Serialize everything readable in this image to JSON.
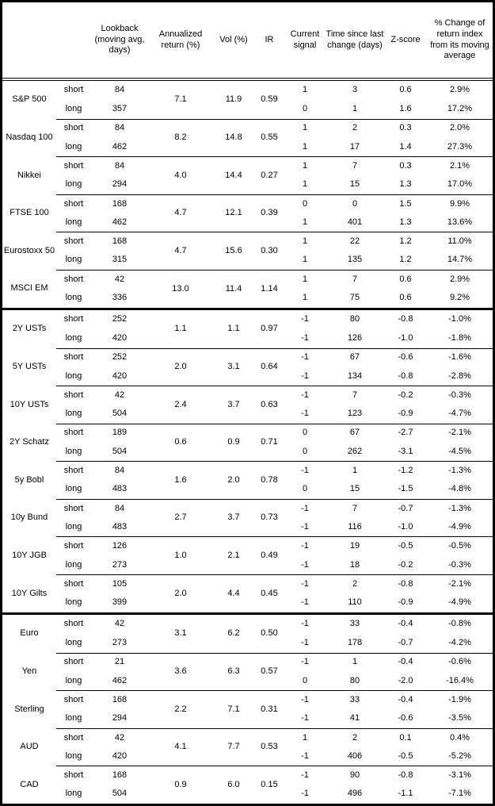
{
  "table": {
    "headers": {
      "lookback": "Lookback (moving avg, days)",
      "annualized_return": "Annualized return (%)",
      "vol": "Vol (%)",
      "ir": "IR",
      "current_signal": "Current signal",
      "time_since": "Time since last change (days)",
      "z_score": "Z-score",
      "pct_change": "% Change of return index from its moving average"
    },
    "groups": [
      {
        "name": "S&P 500",
        "section_start": false,
        "annualized_return": "7.1",
        "vol": "11.9",
        "ir": "0.59",
        "legs": [
          {
            "label": "short",
            "lookback": "84",
            "signal": "1",
            "time_since": "3",
            "z_score": "0.6",
            "pct_change": "2.9%"
          },
          {
            "label": "long",
            "lookback": "357",
            "signal": "0",
            "time_since": "1",
            "z_score": "1.6",
            "pct_change": "17.2%"
          }
        ]
      },
      {
        "name": "Nasdaq 100",
        "section_start": false,
        "annualized_return": "8.2",
        "vol": "14.8",
        "ir": "0.55",
        "legs": [
          {
            "label": "short",
            "lookback": "84",
            "signal": "1",
            "time_since": "2",
            "z_score": "0.3",
            "pct_change": "2.0%"
          },
          {
            "label": "long",
            "lookback": "462",
            "signal": "1",
            "time_since": "17",
            "z_score": "1.4",
            "pct_change": "27.3%"
          }
        ]
      },
      {
        "name": "Nikkei",
        "section_start": false,
        "annualized_return": "4.0",
        "vol": "14.4",
        "ir": "0.27",
        "legs": [
          {
            "label": "short",
            "lookback": "84",
            "signal": "1",
            "time_since": "7",
            "z_score": "0.3",
            "pct_change": "2.1%"
          },
          {
            "label": "long",
            "lookback": "294",
            "signal": "1",
            "time_since": "15",
            "z_score": "1.3",
            "pct_change": "17.0%"
          }
        ]
      },
      {
        "name": "FTSE 100",
        "section_start": false,
        "annualized_return": "4.7",
        "vol": "12.1",
        "ir": "0.39",
        "legs": [
          {
            "label": "short",
            "lookback": "168",
            "signal": "0",
            "time_since": "0",
            "z_score": "1.5",
            "pct_change": "9.9%"
          },
          {
            "label": "long",
            "lookback": "462",
            "signal": "1",
            "time_since": "401",
            "z_score": "1.3",
            "pct_change": "13.6%"
          }
        ]
      },
      {
        "name": "Eurostoxx 50",
        "section_start": false,
        "annualized_return": "4.7",
        "vol": "15.6",
        "ir": "0.30",
        "legs": [
          {
            "label": "short",
            "lookback": "168",
            "signal": "1",
            "time_since": "22",
            "z_score": "1.2",
            "pct_change": "11.0%"
          },
          {
            "label": "long",
            "lookback": "315",
            "signal": "1",
            "time_since": "135",
            "z_score": "1.2",
            "pct_change": "14.7%"
          }
        ]
      },
      {
        "name": "MSCI EM",
        "section_start": false,
        "annualized_return": "13.0",
        "vol": "11.4",
        "ir": "1.14",
        "legs": [
          {
            "label": "short",
            "lookback": "42",
            "signal": "1",
            "time_since": "7",
            "z_score": "0.6",
            "pct_change": "2.9%"
          },
          {
            "label": "long",
            "lookback": "336",
            "signal": "1",
            "time_since": "75",
            "z_score": "0.6",
            "pct_change": "9.2%"
          }
        ]
      },
      {
        "name": "2Y USTs",
        "section_start": true,
        "annualized_return": "1.1",
        "vol": "1.1",
        "ir": "0.97",
        "legs": [
          {
            "label": "short",
            "lookback": "252",
            "signal": "-1",
            "time_since": "80",
            "z_score": "-0.8",
            "pct_change": "-1.0%"
          },
          {
            "label": "long",
            "lookback": "420",
            "signal": "-1",
            "time_since": "126",
            "z_score": "-1.0",
            "pct_change": "-1.8%"
          }
        ]
      },
      {
        "name": "5Y USTs",
        "section_start": false,
        "annualized_return": "2.0",
        "vol": "3.1",
        "ir": "0.64",
        "legs": [
          {
            "label": "short",
            "lookback": "252",
            "signal": "-1",
            "time_since": "67",
            "z_score": "-0.6",
            "pct_change": "-1.6%"
          },
          {
            "label": "long",
            "lookback": "420",
            "signal": "-1",
            "time_since": "134",
            "z_score": "-0.8",
            "pct_change": "-2.8%"
          }
        ]
      },
      {
        "name": "10Y USTs",
        "section_start": false,
        "annualized_return": "2.4",
        "vol": "3.7",
        "ir": "0.63",
        "legs": [
          {
            "label": "short",
            "lookback": "42",
            "signal": "-1",
            "time_since": "7",
            "z_score": "-0.2",
            "pct_change": "-0.3%"
          },
          {
            "label": "long",
            "lookback": "504",
            "signal": "-1",
            "time_since": "123",
            "z_score": "-0.9",
            "pct_change": "-4.7%"
          }
        ]
      },
      {
        "name": "2Y Schatz",
        "section_start": false,
        "annualized_return": "0.6",
        "vol": "0.9",
        "ir": "0.71",
        "legs": [
          {
            "label": "short",
            "lookback": "189",
            "signal": "0",
            "time_since": "67",
            "z_score": "-2.7",
            "pct_change": "-2.1%"
          },
          {
            "label": "long",
            "lookback": "504",
            "signal": "0",
            "time_since": "262",
            "z_score": "-3.1",
            "pct_change": "-4.5%"
          }
        ]
      },
      {
        "name": "5y Bobl",
        "section_start": false,
        "annualized_return": "1.6",
        "vol": "2.0",
        "ir": "0.78",
        "legs": [
          {
            "label": "short",
            "lookback": "84",
            "signal": "-1",
            "time_since": "1",
            "z_score": "-1.2",
            "pct_change": "-1.3%"
          },
          {
            "label": "long",
            "lookback": "483",
            "signal": "0",
            "time_since": "15",
            "z_score": "-1.5",
            "pct_change": "-4.8%"
          }
        ]
      },
      {
        "name": "10y Bund",
        "section_start": false,
        "annualized_return": "2.7",
        "vol": "3.7",
        "ir": "0.73",
        "legs": [
          {
            "label": "short",
            "lookback": "84",
            "signal": "-1",
            "time_since": "7",
            "z_score": "-0.7",
            "pct_change": "-1.3%"
          },
          {
            "label": "long",
            "lookback": "483",
            "signal": "-1",
            "time_since": "116",
            "z_score": "-1.0",
            "pct_change": "-4.9%"
          }
        ]
      },
      {
        "name": "10Y JGB",
        "section_start": false,
        "annualized_return": "1.0",
        "vol": "2.1",
        "ir": "0.49",
        "legs": [
          {
            "label": "short",
            "lookback": "126",
            "signal": "-1",
            "time_since": "19",
            "z_score": "-0.5",
            "pct_change": "-0.5%"
          },
          {
            "label": "long",
            "lookback": "273",
            "signal": "-1",
            "time_since": "18",
            "z_score": "-0.2",
            "pct_change": "-0.3%"
          }
        ]
      },
      {
        "name": "10Y Gilts",
        "section_start": false,
        "annualized_return": "2.0",
        "vol": "4.4",
        "ir": "0.45",
        "legs": [
          {
            "label": "short",
            "lookback": "105",
            "signal": "-1",
            "time_since": "2",
            "z_score": "-0.8",
            "pct_change": "-2.1%"
          },
          {
            "label": "long",
            "lookback": "399",
            "signal": "-1",
            "time_since": "110",
            "z_score": "-0.9",
            "pct_change": "-4.9%"
          }
        ]
      },
      {
        "name": "Euro",
        "section_start": true,
        "annualized_return": "3.1",
        "vol": "6.2",
        "ir": "0.50",
        "legs": [
          {
            "label": "short",
            "lookback": "42",
            "signal": "-1",
            "time_since": "33",
            "z_score": "-0.4",
            "pct_change": "-0.8%"
          },
          {
            "label": "long",
            "lookback": "273",
            "signal": "-1",
            "time_since": "178",
            "z_score": "-0.7",
            "pct_change": "-4.2%"
          }
        ]
      },
      {
        "name": "Yen",
        "section_start": false,
        "annualized_return": "3.6",
        "vol": "6.3",
        "ir": "0.57",
        "legs": [
          {
            "label": "short",
            "lookback": "21",
            "signal": "-1",
            "time_since": "1",
            "z_score": "-0.4",
            "pct_change": "-0.6%"
          },
          {
            "label": "long",
            "lookback": "462",
            "signal": "0",
            "time_since": "80",
            "z_score": "-2.0",
            "pct_change": "-16.4%"
          }
        ]
      },
      {
        "name": "Sterling",
        "section_start": false,
        "annualized_return": "2.2",
        "vol": "7.1",
        "ir": "0.31",
        "legs": [
          {
            "label": "short",
            "lookback": "168",
            "signal": "-1",
            "time_since": "33",
            "z_score": "-0.4",
            "pct_change": "-1.9%"
          },
          {
            "label": "long",
            "lookback": "294",
            "signal": "-1",
            "time_since": "41",
            "z_score": "-0.6",
            "pct_change": "-3.5%"
          }
        ]
      },
      {
        "name": "AUD",
        "section_start": false,
        "annualized_return": "4.1",
        "vol": "7.7",
        "ir": "0.53",
        "legs": [
          {
            "label": "short",
            "lookback": "42",
            "signal": "1",
            "time_since": "2",
            "z_score": "0.1",
            "pct_change": "0.4%"
          },
          {
            "label": "long",
            "lookback": "420",
            "signal": "-1",
            "time_since": "406",
            "z_score": "-0.5",
            "pct_change": "-5.2%"
          }
        ]
      },
      {
        "name": "CAD",
        "section_start": false,
        "annualized_return": "0.9",
        "vol": "6.0",
        "ir": "0.15",
        "legs": [
          {
            "label": "short",
            "lookback": "168",
            "signal": "-1",
            "time_since": "90",
            "z_score": "-0.8",
            "pct_change": "-3.1%"
          },
          {
            "label": "long",
            "lookback": "504",
            "signal": "-1",
            "time_since": "496",
            "z_score": "-1.1",
            "pct_change": "-7.1%"
          }
        ]
      }
    ]
  },
  "chart_data": {
    "type": "table",
    "columns": [
      "Asset",
      "Leg",
      "Lookback (moving avg, days)",
      "Annualized return (%)",
      "Vol (%)",
      "IR",
      "Current signal",
      "Time since last change (days)",
      "Z-score",
      "% Change of return index from its moving average"
    ],
    "rows": [
      [
        "S&P 500",
        "short",
        84,
        7.1,
        11.9,
        0.59,
        1,
        3,
        0.6,
        "2.9%"
      ],
      [
        "S&P 500",
        "long",
        357,
        7.1,
        11.9,
        0.59,
        0,
        1,
        1.6,
        "17.2%"
      ],
      [
        "Nasdaq 100",
        "short",
        84,
        8.2,
        14.8,
        0.55,
        1,
        2,
        0.3,
        "2.0%"
      ],
      [
        "Nasdaq 100",
        "long",
        462,
        8.2,
        14.8,
        0.55,
        1,
        17,
        1.4,
        "27.3%"
      ],
      [
        "Nikkei",
        "short",
        84,
        4.0,
        14.4,
        0.27,
        1,
        7,
        0.3,
        "2.1%"
      ],
      [
        "Nikkei",
        "long",
        294,
        4.0,
        14.4,
        0.27,
        1,
        15,
        1.3,
        "17.0%"
      ],
      [
        "FTSE 100",
        "short",
        168,
        4.7,
        12.1,
        0.39,
        0,
        0,
        1.5,
        "9.9%"
      ],
      [
        "FTSE 100",
        "long",
        462,
        4.7,
        12.1,
        0.39,
        1,
        401,
        1.3,
        "13.6%"
      ],
      [
        "Eurostoxx 50",
        "short",
        168,
        4.7,
        15.6,
        0.3,
        1,
        22,
        1.2,
        "11.0%"
      ],
      [
        "Eurostoxx 50",
        "long",
        315,
        4.7,
        15.6,
        0.3,
        1,
        135,
        1.2,
        "14.7%"
      ],
      [
        "MSCI EM",
        "short",
        42,
        13.0,
        11.4,
        1.14,
        1,
        7,
        0.6,
        "2.9%"
      ],
      [
        "MSCI EM",
        "long",
        336,
        13.0,
        11.4,
        1.14,
        1,
        75,
        0.6,
        "9.2%"
      ],
      [
        "2Y USTs",
        "short",
        252,
        1.1,
        1.1,
        0.97,
        -1,
        80,
        -0.8,
        "-1.0%"
      ],
      [
        "2Y USTs",
        "long",
        420,
        1.1,
        1.1,
        0.97,
        -1,
        126,
        -1.0,
        "-1.8%"
      ],
      [
        "5Y USTs",
        "short",
        252,
        2.0,
        3.1,
        0.64,
        -1,
        67,
        -0.6,
        "-1.6%"
      ],
      [
        "5Y USTs",
        "long",
        420,
        2.0,
        3.1,
        0.64,
        -1,
        134,
        -0.8,
        "-2.8%"
      ],
      [
        "10Y USTs",
        "short",
        42,
        2.4,
        3.7,
        0.63,
        -1,
        7,
        -0.2,
        "-0.3%"
      ],
      [
        "10Y USTs",
        "long",
        504,
        2.4,
        3.7,
        0.63,
        -1,
        123,
        -0.9,
        "-4.7%"
      ],
      [
        "2Y Schatz",
        "short",
        189,
        0.6,
        0.9,
        0.71,
        0,
        67,
        -2.7,
        "-2.1%"
      ],
      [
        "2Y Schatz",
        "long",
        504,
        0.6,
        0.9,
        0.71,
        0,
        262,
        -3.1,
        "-4.5%"
      ],
      [
        "5y Bobl",
        "short",
        84,
        1.6,
        2.0,
        0.78,
        -1,
        1,
        -1.2,
        "-1.3%"
      ],
      [
        "5y Bobl",
        "long",
        483,
        1.6,
        2.0,
        0.78,
        0,
        15,
        -1.5,
        "-4.8%"
      ],
      [
        "10y Bund",
        "short",
        84,
        2.7,
        3.7,
        0.73,
        -1,
        7,
        -0.7,
        "-1.3%"
      ],
      [
        "10y Bund",
        "long",
        483,
        2.7,
        3.7,
        0.73,
        -1,
        116,
        -1.0,
        "-4.9%"
      ],
      [
        "10Y JGB",
        "short",
        126,
        1.0,
        2.1,
        0.49,
        -1,
        19,
        -0.5,
        "-0.5%"
      ],
      [
        "10Y JGB",
        "long",
        273,
        1.0,
        2.1,
        0.49,
        -1,
        18,
        -0.2,
        "-0.3%"
      ],
      [
        "10Y Gilts",
        "short",
        105,
        2.0,
        4.4,
        0.45,
        -1,
        2,
        -0.8,
        "-2.1%"
      ],
      [
        "10Y Gilts",
        "long",
        399,
        2.0,
        4.4,
        0.45,
        -1,
        110,
        -0.9,
        "-4.9%"
      ],
      [
        "Euro",
        "short",
        42,
        3.1,
        6.2,
        0.5,
        -1,
        33,
        -0.4,
        "-0.8%"
      ],
      [
        "Euro",
        "long",
        273,
        3.1,
        6.2,
        0.5,
        -1,
        178,
        -0.7,
        "-4.2%"
      ],
      [
        "Yen",
        "short",
        21,
        3.6,
        6.3,
        0.57,
        -1,
        1,
        -0.4,
        "-0.6%"
      ],
      [
        "Yen",
        "long",
        462,
        3.6,
        6.3,
        0.57,
        0,
        80,
        -2.0,
        "-16.4%"
      ],
      [
        "Sterling",
        "short",
        168,
        2.2,
        7.1,
        0.31,
        -1,
        33,
        -0.4,
        "-1.9%"
      ],
      [
        "Sterling",
        "long",
        294,
        2.2,
        7.1,
        0.31,
        -1,
        41,
        -0.6,
        "-3.5%"
      ],
      [
        "AUD",
        "short",
        42,
        4.1,
        7.7,
        0.53,
        1,
        2,
        0.1,
        "0.4%"
      ],
      [
        "AUD",
        "long",
        420,
        4.1,
        7.7,
        0.53,
        -1,
        406,
        -0.5,
        "-5.2%"
      ],
      [
        "CAD",
        "short",
        168,
        0.9,
        6.0,
        0.15,
        -1,
        90,
        -0.8,
        "-3.1%"
      ],
      [
        "CAD",
        "long",
        504,
        0.9,
        6.0,
        0.15,
        -1,
        496,
        -1.1,
        "-7.1%"
      ]
    ],
    "layout": {
      "grid": "horizontal rules only",
      "sections": [
        "equities",
        "bonds",
        "fx"
      ],
      "section_breaks_before": [
        "2Y USTs",
        "Euro"
      ]
    }
  }
}
